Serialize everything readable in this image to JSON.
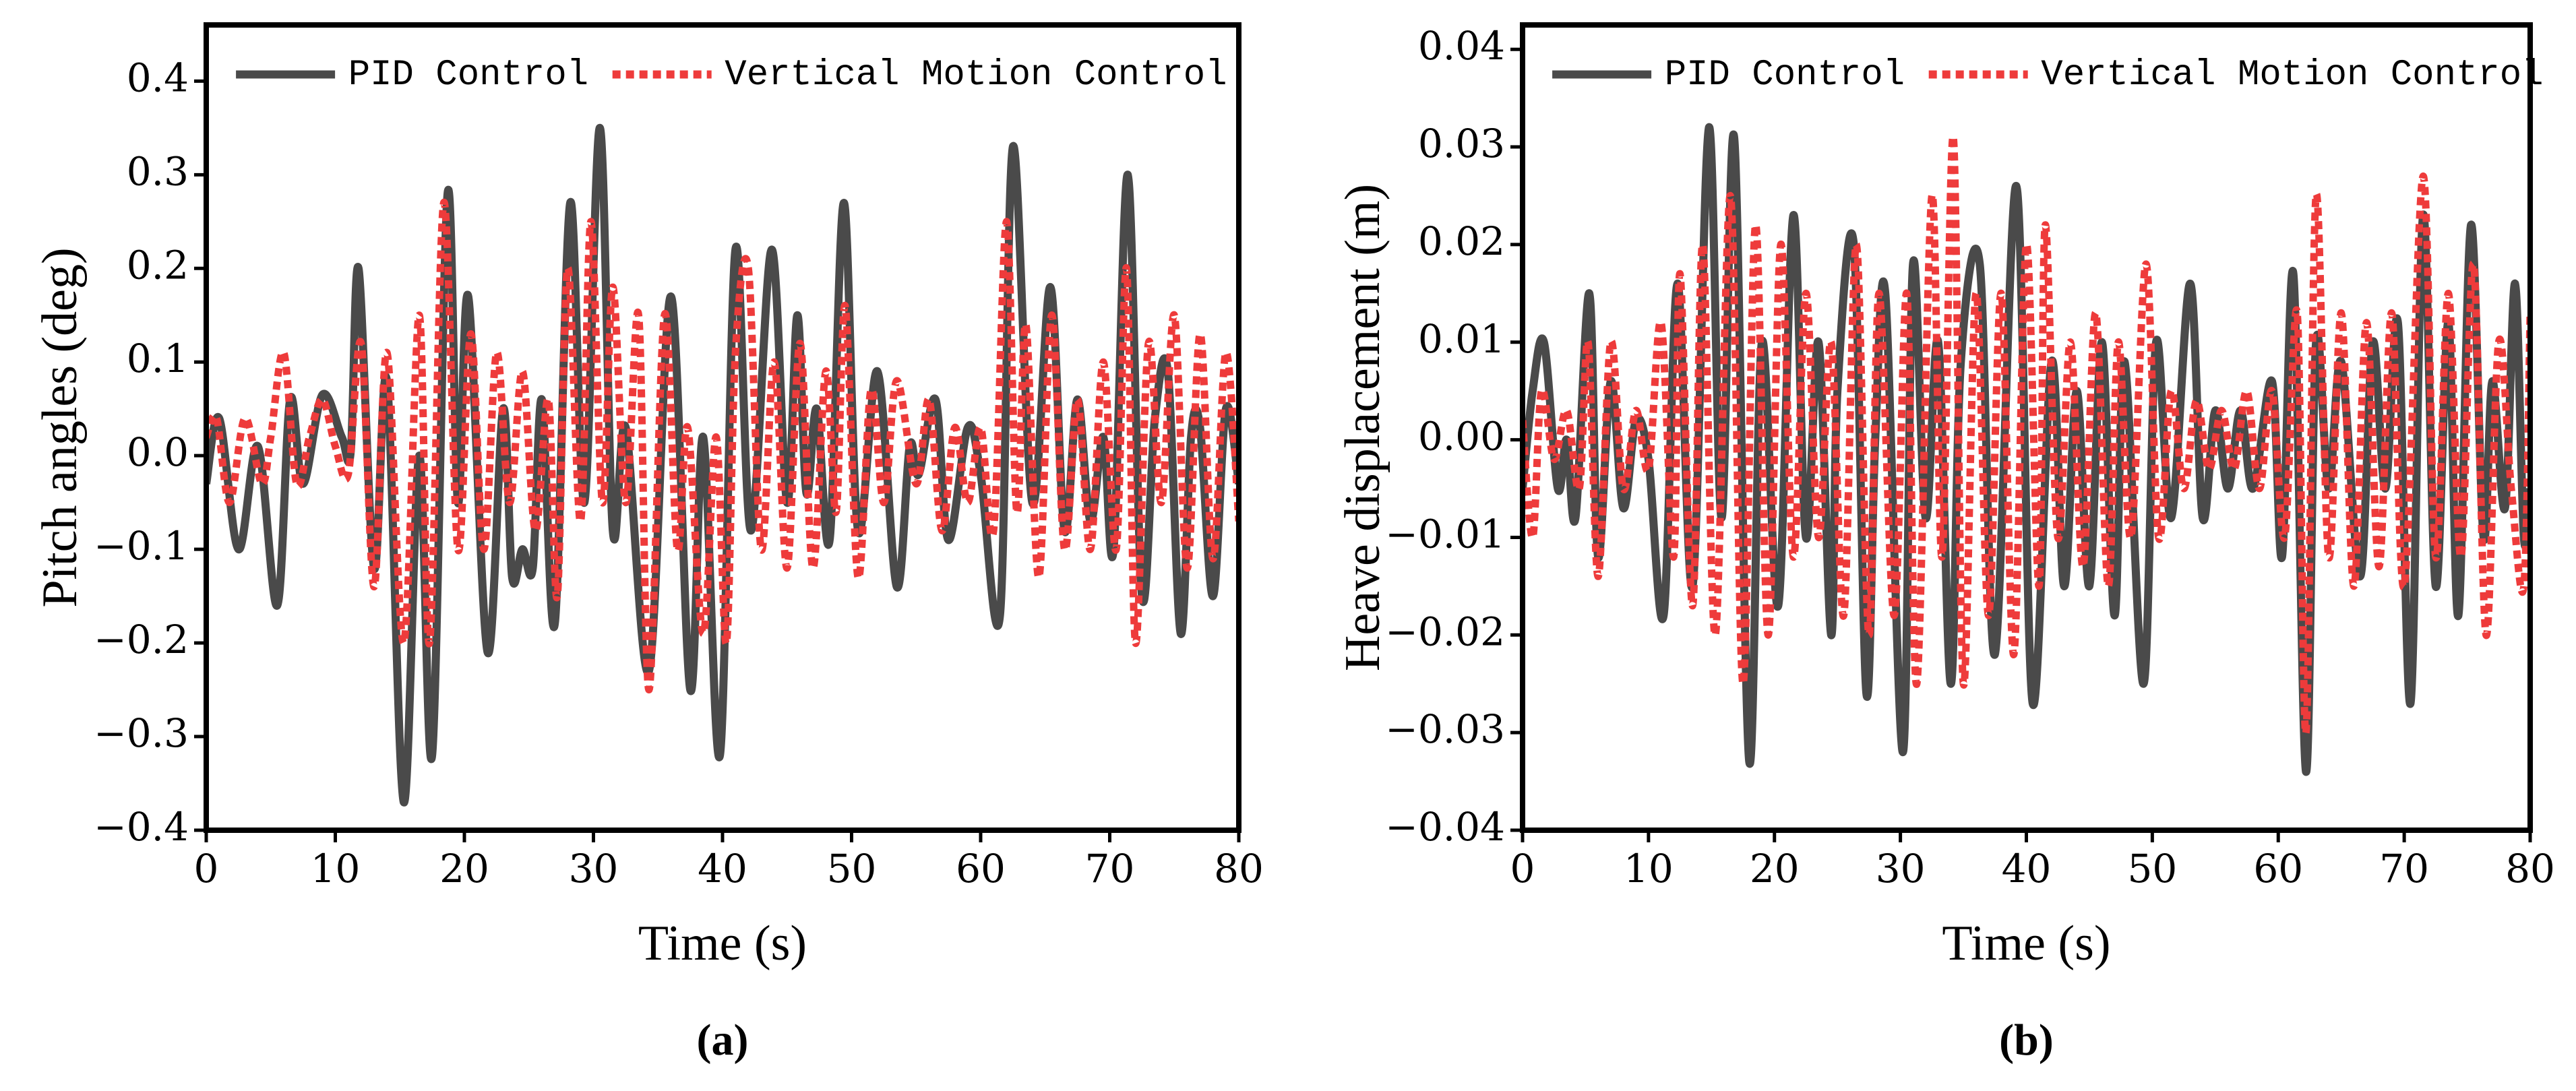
{
  "chart_data": [
    {
      "type": "line",
      "ylabel": "Pitch angles (deg)",
      "xlabel": "Time (s)",
      "caption": "(a)",
      "xlim": [
        0,
        80
      ],
      "xticks": [
        0,
        10,
        20,
        30,
        40,
        50,
        60,
        70,
        80
      ],
      "ylim": [
        -0.4,
        0.46
      ],
      "yticks": [
        {
          "value": -0.4,
          "label": "−0.4"
        },
        {
          "value": -0.3,
          "label": "−0.3"
        },
        {
          "value": -0.2,
          "label": "−0.2"
        },
        {
          "value": -0.1,
          "label": "−0.1"
        },
        {
          "value": 0,
          "label": "0.0"
        },
        0.1,
        0.2,
        0.3,
        0.4
      ],
      "series": [
        {
          "name": "PID Control",
          "color": "#4a4a4a",
          "style": "solid",
          "x": [
            0,
            1,
            2.5,
            4,
            5.5,
            6.5,
            7.5,
            9,
            10.5,
            11.2,
            11.8,
            13,
            14,
            15.3,
            16.5,
            17.5,
            18.7,
            19.5,
            20.3,
            21.8,
            23,
            23.7,
            24.5,
            25.3,
            26,
            27,
            28.2,
            29.3,
            30.5,
            31.5,
            32.5,
            34.3,
            36,
            37.5,
            38.5,
            39.8,
            41,
            42.2,
            43.8,
            45,
            45.8,
            46.5,
            47.3,
            48.3,
            49.4,
            50.5,
            52,
            53.5,
            54.5,
            55.2,
            56.5,
            57.5,
            59,
            60,
            61.5,
            62.5,
            64,
            65.4,
            66.5,
            67.5,
            68.5,
            69.5,
            70.3,
            71.4,
            72.5,
            73.5,
            74.5,
            75.5,
            76.3,
            77,
            78,
            79,
            80
          ],
          "values": [
            -0.03,
            0.04,
            -0.1,
            0.01,
            -0.16,
            0.06,
            -0.03,
            0.065,
            0.02,
            0.005,
            0.2,
            -0.12,
            0.08,
            -0.37,
            0,
            -0.32,
            0.28,
            -0.05,
            0.17,
            -0.21,
            0.05,
            -0.13,
            -0.1,
            -0.12,
            0.06,
            -0.18,
            0.27,
            -0.05,
            0.35,
            -0.08,
            0.03,
            -0.23,
            0.17,
            -0.25,
            0.02,
            -0.32,
            0.22,
            -0.08,
            0.22,
            -0.05,
            0.15,
            -0.04,
            0.05,
            -0.09,
            0.27,
            -0.08,
            0.09,
            -0.14,
            0.01,
            -0.02,
            0.06,
            -0.09,
            0.03,
            -0.02,
            -0.17,
            0.33,
            -0.05,
            0.18,
            -0.08,
            0.06,
            -0.07,
            0.02,
            -0.1,
            0.3,
            -0.15,
            0.04,
            0.09,
            -0.19,
            0.02,
            0.03,
            -0.15,
            0.05,
            -0.03
          ]
        },
        {
          "name": "Vertical Motion Control",
          "color": "#ee3b3b",
          "style": "dotted",
          "x": [
            0,
            0.8,
            1.8,
            3,
            4.3,
            5,
            6,
            7,
            8,
            9,
            10,
            11,
            12,
            13,
            14,
            15.3,
            16.5,
            17.3,
            18.4,
            19.5,
            20.5,
            21.5,
            22.5,
            23.5,
            24.5,
            25.5,
            26.5,
            27.2,
            28,
            29,
            29.8,
            30.7,
            31.5,
            32.5,
            33.5,
            34.3,
            35.5,
            36.5,
            37.3,
            38.5,
            39.5,
            40.3,
            41,
            42,
            43,
            44,
            45,
            46,
            47,
            48,
            48.8,
            49.5,
            50.5,
            51.5,
            52.5,
            53.5,
            55,
            56,
            57,
            58,
            59,
            60,
            61,
            62,
            62.8,
            63.5,
            64.5,
            65.5,
            66.5,
            67.5,
            68.5,
            69.5,
            70.5,
            71.3,
            72,
            73,
            74,
            75,
            76,
            77,
            78,
            79,
            80
          ],
          "values": [
            0.02,
            0.04,
            -0.05,
            0.04,
            -0.03,
            0.02,
            0.11,
            -0.03,
            0.02,
            0.06,
            0.01,
            -0.02,
            0.12,
            -0.14,
            0.11,
            -0.2,
            0.15,
            -0.2,
            0.27,
            -0.1,
            0.13,
            -0.1,
            0.11,
            -0.05,
            0.09,
            -0.08,
            0.06,
            -0.15,
            0.2,
            -0.07,
            0.25,
            -0.05,
            0.18,
            -0.05,
            0.15,
            -0.25,
            0.15,
            -0.1,
            0.03,
            -0.19,
            0.02,
            -0.2,
            0.11,
            0.2,
            -0.1,
            0.1,
            -0.12,
            0.12,
            -0.12,
            0.09,
            -0.06,
            0.16,
            -0.13,
            0.07,
            -0.05,
            0.08,
            -0.03,
            0.06,
            -0.08,
            0.03,
            -0.05,
            0.03,
            -0.08,
            0.25,
            -0.06,
            0.14,
            -0.13,
            0.15,
            -0.1,
            0.06,
            -0.1,
            0.1,
            -0.1,
            0.2,
            -0.2,
            0.12,
            -0.05,
            0.15,
            -0.12,
            0.13,
            -0.11,
            0.11,
            -0.07
          ]
        }
      ]
    },
    {
      "type": "line",
      "ylabel": "Heave displacement (m)",
      "xlabel": "Time (s)",
      "caption": "(b)",
      "xlim": [
        0,
        80
      ],
      "xticks": [
        0,
        10,
        20,
        30,
        40,
        50,
        60,
        70,
        80
      ],
      "ylim": [
        -0.04,
        0.0425
      ],
      "yticks": [
        {
          "value": -0.04,
          "label": "−0.04"
        },
        {
          "value": -0.03,
          "label": "−0.03"
        },
        {
          "value": -0.02,
          "label": "−0.02"
        },
        {
          "value": -0.01,
          "label": "−0.01"
        },
        {
          "value": 0,
          "label": "0.00"
        },
        0.01,
        0.02,
        0.03,
        0.04
      ],
      "series": [
        {
          "name": "PID Control",
          "color": "#4a4a4a",
          "style": "solid",
          "x": [
            0,
            0.8,
            1.7,
            2.8,
            3.5,
            4.2,
            5.3,
            6,
            7,
            8,
            9,
            10,
            11.2,
            12.3,
            13.5,
            14.8,
            15.8,
            16.8,
            18,
            19,
            20.3,
            21.5,
            22.5,
            23.5,
            24.5,
            25,
            26.3,
            27.3,
            28,
            28.8,
            30.2,
            31,
            32,
            33,
            34,
            34.8,
            36.3,
            37.5,
            39.2,
            40.5,
            42,
            43,
            44,
            45,
            46,
            47,
            47.8,
            49.3,
            50.3,
            51.5,
            53,
            54,
            55,
            56,
            57,
            58,
            59.5,
            60.3,
            61.2,
            62.2,
            63,
            64,
            65,
            66.5,
            67.5,
            68.5,
            69.5,
            70.5,
            71.5,
            72.5,
            73.5,
            74.3,
            75.3,
            76.3,
            77,
            78,
            78.8,
            79.5,
            80
          ],
          "values": [
            -0.005,
            0.005,
            0.01,
            -0.005,
            0,
            -0.008,
            0.015,
            -0.012,
            0.006,
            -0.007,
            0.002,
            -0.002,
            -0.018,
            0.016,
            -0.015,
            0.032,
            -0.008,
            0.031,
            -0.033,
            0.01,
            -0.017,
            0.023,
            -0.01,
            0.01,
            -0.02,
            0.005,
            0.02,
            -0.026,
            0,
            0.015,
            -0.032,
            0.018,
            -0.008,
            0.01,
            -0.025,
            0.008,
            0.018,
            -0.022,
            0.026,
            -0.027,
            0.008,
            -0.015,
            0.005,
            -0.015,
            0.01,
            -0.018,
            0.008,
            -0.025,
            0.01,
            -0.008,
            0.016,
            -0.008,
            0.003,
            -0.005,
            0.003,
            -0.005,
            0.006,
            -0.012,
            0.017,
            -0.034,
            0.01,
            -0.005,
            0.008,
            -0.014,
            0.01,
            -0.005,
            0.012,
            -0.027,
            0.023,
            -0.015,
            0.012,
            -0.018,
            0.022,
            -0.01,
            0.006,
            -0.007,
            0.016,
            -0.01,
            -0.005
          ]
        },
        {
          "name": "Vertical Motion Control",
          "color": "#ee3b3b",
          "style": "dotted",
          "x": [
            0,
            0.8,
            1.5,
            2.5,
            3.5,
            4.5,
            5.2,
            6,
            7,
            8,
            9,
            10,
            11,
            12,
            12.5,
            13.5,
            14.3,
            15.3,
            16.5,
            17.5,
            18.5,
            19.5,
            20.5,
            21.5,
            22.5,
            23.5,
            24.5,
            25.5,
            26.5,
            27.5,
            28.3,
            29.5,
            30.5,
            31.3,
            32.5,
            33.3,
            34.2,
            35,
            36,
            37,
            38,
            39,
            40,
            41,
            41.5,
            42.5,
            43.5,
            44.5,
            45.5,
            46.5,
            47.3,
            48.3,
            49.5,
            50.5,
            51.5,
            52.5,
            53.5,
            54.5,
            55.5,
            56.5,
            57.5,
            58.5,
            59.5,
            60.5,
            61.5,
            62.2,
            63,
            64,
            65,
            66,
            67,
            68,
            69,
            70,
            71.5,
            72.5,
            73.5,
            74.5,
            75.5,
            76.5,
            77.5,
            78.5,
            79.5,
            80
          ],
          "values": [
            0.002,
            -0.01,
            0.005,
            -0.002,
            0.003,
            -0.005,
            0.01,
            -0.014,
            0.01,
            -0.005,
            0.003,
            -0.003,
            0.012,
            -0.012,
            0.017,
            -0.017,
            0.02,
            -0.02,
            0.025,
            -0.025,
            0.022,
            -0.02,
            0.02,
            -0.012,
            0.015,
            -0.01,
            0.01,
            -0.018,
            0.02,
            -0.02,
            0.015,
            -0.018,
            0.015,
            -0.025,
            0.025,
            -0.012,
            0.031,
            -0.025,
            0.015,
            -0.018,
            0.015,
            -0.022,
            0.02,
            -0.015,
            0.022,
            -0.01,
            0.01,
            -0.013,
            0.013,
            -0.015,
            0.01,
            -0.01,
            0.018,
            -0.01,
            0.005,
            -0.005,
            0.004,
            -0.003,
            0.003,
            -0.003,
            0.005,
            -0.005,
            0.005,
            -0.01,
            0.013,
            -0.03,
            0.025,
            -0.012,
            0.013,
            -0.015,
            0.012,
            -0.013,
            0.013,
            -0.015,
            0.027,
            -0.012,
            0.015,
            -0.012,
            0.018,
            -0.02,
            0.01,
            -0.005,
            -0.015,
            0.013
          ]
        }
      ]
    }
  ]
}
